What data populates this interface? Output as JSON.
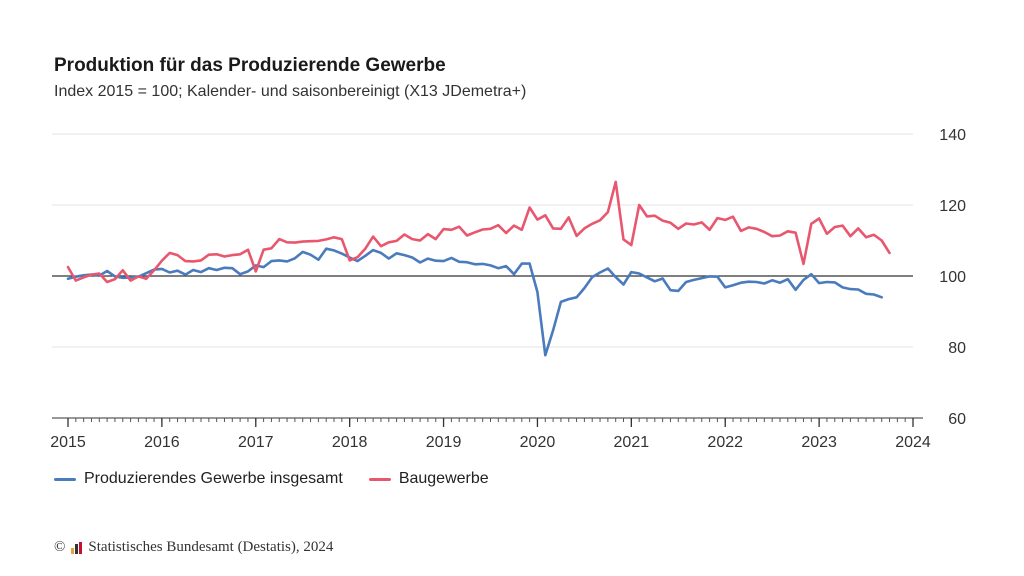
{
  "chart_data": {
    "type": "line",
    "title": "Produktion für das Produzierende Gewerbe",
    "subtitle": "Index 2015 = 100; Kalender- und saisonbereinigt (X13 JDemetra+)",
    "xlim": [
      2015.0,
      2024.0
    ],
    "ylim": [
      60,
      140
    ],
    "x_ticks": [
      "2015",
      "2016",
      "2017",
      "2018",
      "2019",
      "2020",
      "2021",
      "2022",
      "2023",
      "2024"
    ],
    "y_ticks": [
      "60",
      "80",
      "100",
      "120",
      "140"
    ],
    "reference_line": 100,
    "grid": true,
    "legend_position": "bottom-left",
    "series": [
      {
        "name": "Produzierendes Gewerbe insgesamt",
        "color": "#4a7bbd",
        "values": [
          99.2,
          99.8,
          100.2,
          100.4,
          100.1,
          101.4,
          99.9,
          99.5,
          99.6,
          99.8,
          100.8,
          101.8,
          102.0,
          101.0,
          101.5,
          100.4,
          101.7,
          101.1,
          102.2,
          101.7,
          102.3,
          102.2,
          100.5,
          101.3,
          103.0,
          102.5,
          104.2,
          104.4,
          104.1,
          105.0,
          106.8,
          106.0,
          104.6,
          107.7,
          107.2,
          106.3,
          105.2,
          104.2,
          105.7,
          107.3,
          106.5,
          104.9,
          106.4,
          105.9,
          105.2,
          103.8,
          104.9,
          104.3,
          104.2,
          105.1,
          104.0,
          103.9,
          103.3,
          103.4,
          103.0,
          102.2,
          102.8,
          100.5,
          103.5,
          103.5,
          95.5,
          77.7,
          84.7,
          92.7,
          93.5,
          94.0,
          96.6,
          99.7,
          101.0,
          102.1,
          99.7,
          97.6,
          101.1,
          100.7,
          99.6,
          98.5,
          99.3,
          96.0,
          95.8,
          98.3,
          98.9,
          99.4,
          99.9,
          99.8,
          96.8,
          97.4,
          98.1,
          98.4,
          98.3,
          97.9,
          98.8,
          98.1,
          99.1,
          96.1,
          98.9,
          100.5,
          98.0,
          98.3,
          98.2,
          96.8,
          96.3,
          96.2,
          95.0,
          94.8,
          94.0
        ]
      },
      {
        "name": "Baugewerbe",
        "color": "#e8576e",
        "values": [
          102.5,
          98.7,
          99.6,
          100.4,
          100.7,
          98.3,
          99.1,
          101.6,
          98.7,
          99.9,
          99.2,
          101.6,
          104.3,
          106.5,
          105.9,
          104.2,
          104.1,
          104.4,
          106.0,
          106.1,
          105.5,
          105.9,
          106.1,
          107.4,
          101.3,
          107.4,
          107.8,
          110.4,
          109.5,
          109.4,
          109.7,
          109.8,
          109.9,
          110.3,
          110.9,
          110.4,
          104.4,
          105.3,
          107.7,
          111.1,
          108.4,
          109.5,
          109.9,
          111.7,
          110.4,
          110.0,
          111.8,
          110.4,
          113.2,
          113.0,
          113.9,
          111.4,
          112.3,
          113.1,
          113.3,
          114.3,
          112.1,
          114.2,
          113.0,
          119.3,
          115.9,
          117.1,
          113.4,
          113.3,
          116.5,
          111.3,
          113.4,
          114.7,
          115.7,
          118.0,
          126.5,
          110.3,
          108.7,
          120.0,
          116.8,
          117.0,
          115.6,
          115.0,
          113.3,
          114.8,
          114.5,
          115.1,
          113.0,
          116.3,
          115.8,
          116.7,
          112.7,
          113.7,
          113.3,
          112.4,
          111.2,
          111.4,
          112.6,
          112.2,
          103.4,
          114.7,
          116.2,
          111.9,
          113.8,
          114.2,
          111.2,
          113.4,
          110.9,
          111.6,
          110.0,
          106.5
        ]
      }
    ]
  },
  "legend": {
    "item1": "Produzierendes Gewerbe insgesamt",
    "item2": "Baugewerbe"
  },
  "footer": {
    "copyright_symbol": "©",
    "source": "Statistisches Bundesamt (Destatis), 2024",
    "logo_colors": [
      "#e8a33d",
      "#333333",
      "#c8102e"
    ]
  }
}
